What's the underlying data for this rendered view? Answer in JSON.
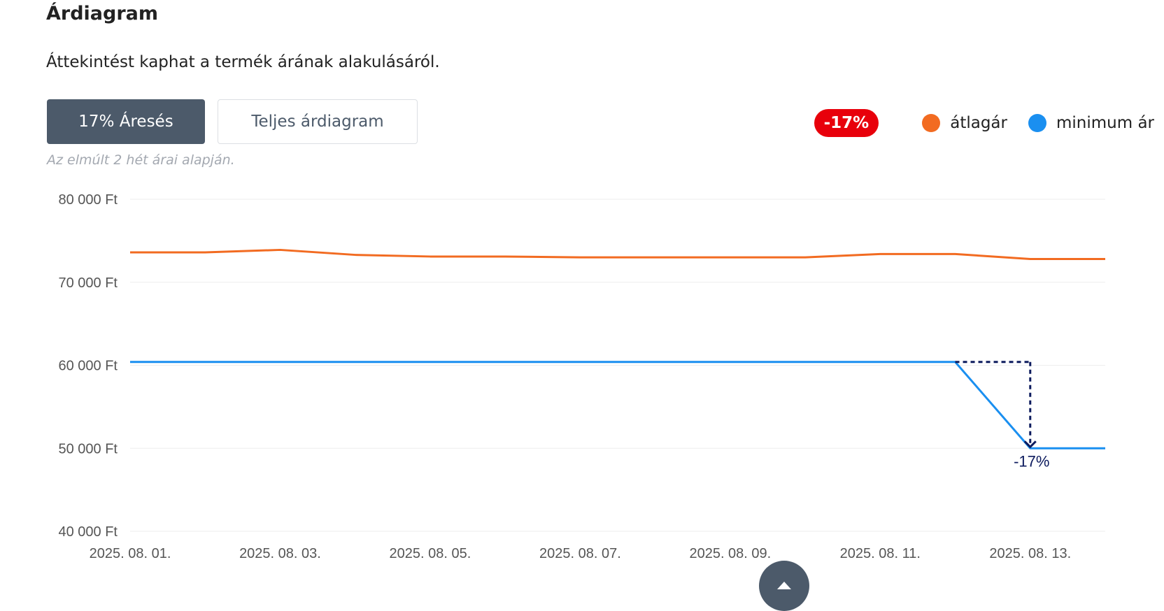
{
  "header": {
    "title": "Árdiagram",
    "subtitle": "Áttekintést kaphat a termék árának alakulásáról."
  },
  "buttons": {
    "drop_label": "17% Áresés",
    "full_label": "Teljes árdiagram"
  },
  "note": "Az elmúlt 2 hét árai alapján.",
  "legend": {
    "badge": "-17%",
    "avg_label": "átlagár",
    "min_label": "minimum ár"
  },
  "colors": {
    "average": "#f26b21",
    "minimum": "#1a8ff0",
    "annotation": "#0d1b5e",
    "badge": "#e8000b",
    "button_active": "#4c5a6a"
  },
  "scroll_top_icon": "caret-up-icon",
  "chart_data": {
    "type": "line",
    "x": [
      "2025. 08. 01.",
      "2025. 08. 02.",
      "2025. 08. 03.",
      "2025. 08. 04.",
      "2025. 08. 05.",
      "2025. 08. 06.",
      "2025. 08. 07.",
      "2025. 08. 08.",
      "2025. 08. 09.",
      "2025. 08. 10.",
      "2025. 08. 11.",
      "2025. 08. 12.",
      "2025. 08. 13.",
      "2025. 08. 14."
    ],
    "x_tick_labels": [
      "2025. 08. 01.",
      "2025. 08. 03.",
      "2025. 08. 05.",
      "2025. 08. 07.",
      "2025. 08. 09.",
      "2025. 08. 11.",
      "2025. 08. 13."
    ],
    "y_tick_labels": [
      "80 000 Ft",
      "70 000 Ft",
      "60 000 Ft",
      "50 000 Ft",
      "40 000 Ft"
    ],
    "y_ticks": [
      80000,
      70000,
      60000,
      50000,
      40000
    ],
    "ylim": [
      40000,
      80000
    ],
    "grid": true,
    "legend_position": "top-right",
    "series": [
      {
        "name": "átlagár",
        "values": [
          73600,
          73600,
          73900,
          73300,
          73100,
          73100,
          73000,
          73000,
          73000,
          73000,
          73400,
          73400,
          72800,
          72800
        ]
      },
      {
        "name": "minimum ár",
        "values": [
          60400,
          60400,
          60400,
          60400,
          60400,
          60400,
          60400,
          60400,
          60400,
          60400,
          60400,
          60400,
          50000,
          50000
        ]
      }
    ],
    "annotation": {
      "label": "-17%",
      "from_x": "2025. 08. 12.",
      "to_x": "2025. 08. 13.",
      "from_value": 60400,
      "to_value": 50000
    }
  }
}
